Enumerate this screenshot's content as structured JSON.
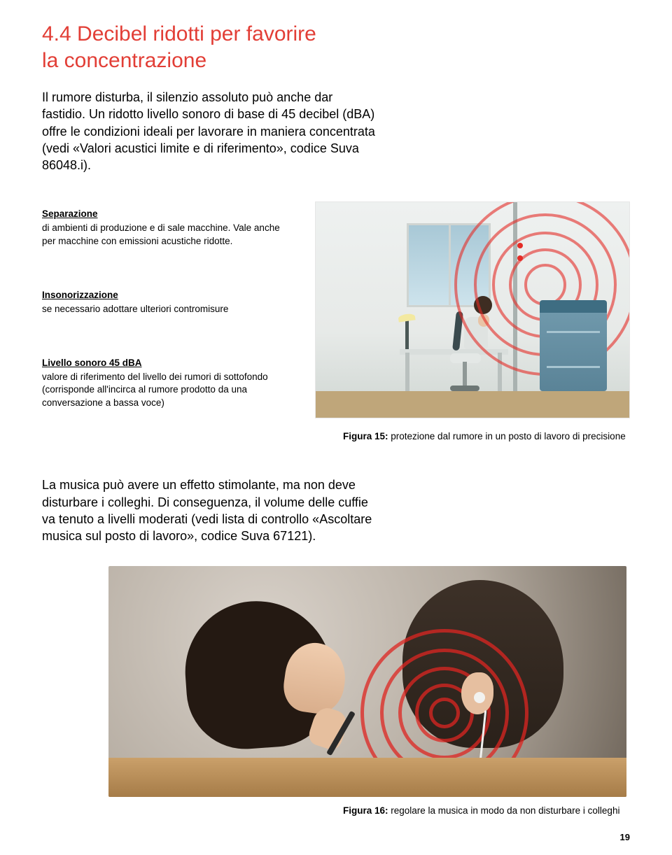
{
  "colors": {
    "heading": "#e23e36",
    "body_text": "#000000",
    "page_bg": "#ffffff",
    "red_ring": "#e42c26",
    "machine_blue": "#5a8397",
    "desk_wood": "#a67c48"
  },
  "typography": {
    "heading_fontsize_pt": 22,
    "body_fontsize_pt": 13,
    "callout_title_fontsize_pt": 10,
    "callout_body_fontsize_pt": 10,
    "caption_fontsize_pt": 10,
    "font_family": "Arial, Helvetica, sans-serif"
  },
  "heading": {
    "line1": "4.4  Decibel ridotti per favorire",
    "line2": "la concentrazione"
  },
  "intro": "Il rumore disturba, il silenzio assoluto può anche dar fastidio. Un ridotto livello sonoro di base di 45 decibel (dBA) offre le condizioni ideali per lavorare in maniera concentrata (vedi «Valori acustici limite e di riferimento», codice Suva 86048.i).",
  "callouts": [
    {
      "title": "Separazione",
      "body": "di ambienti di produzione e di sale macchine. Vale anche per macchine con emissioni acustiche ridotte."
    },
    {
      "title": "Insonorizzazione",
      "body": "se necessario adottare ulteriori contromisure"
    },
    {
      "title": "Livello sonoro 45 dBA",
      "body": "valore di riferimento del livello dei rumori di sottofondo (corrisponde all'incirca al rumore prodotto da una conversazione a bassa voce)"
    }
  ],
  "figure15": {
    "label": "Figura 15:",
    "text": " protezione dal rumore in un posto di lavoro di precisione",
    "scene": {
      "type": "illustration",
      "description": "Worker at precision desk with lamp, separated by wall from noisy blue machine emitting red concentric sound rings",
      "ring_count": 5,
      "ring_color": "#e42c26",
      "machine_color": "#5a8397",
      "floor_color": "#bfa67a",
      "window_color": "#a8c8d6"
    }
  },
  "para2": "La musica può avere un effetto stimolante, ma non deve disturbare i colleghi. Di conseguenza, il volume delle cuffie va tenuto a livelli moderati (vedi lista di controllo «Ascoltare musica sul posto di lavoro», codice Suva 67121).",
  "figure16": {
    "label": "Figura 16:",
    "text": " regolare la musica in modo da non disturbare i colleghi",
    "scene": {
      "type": "illustration",
      "description": "Woman working at desk in foreground; coworker behind wearing earbud with red concentric sound rings at ear",
      "ring_count": 5,
      "ring_color": "#de2622",
      "desk_color": "#a67c48",
      "hair_color": "#241912",
      "skin_color": "#e6bf9e"
    }
  },
  "page_number": "19"
}
